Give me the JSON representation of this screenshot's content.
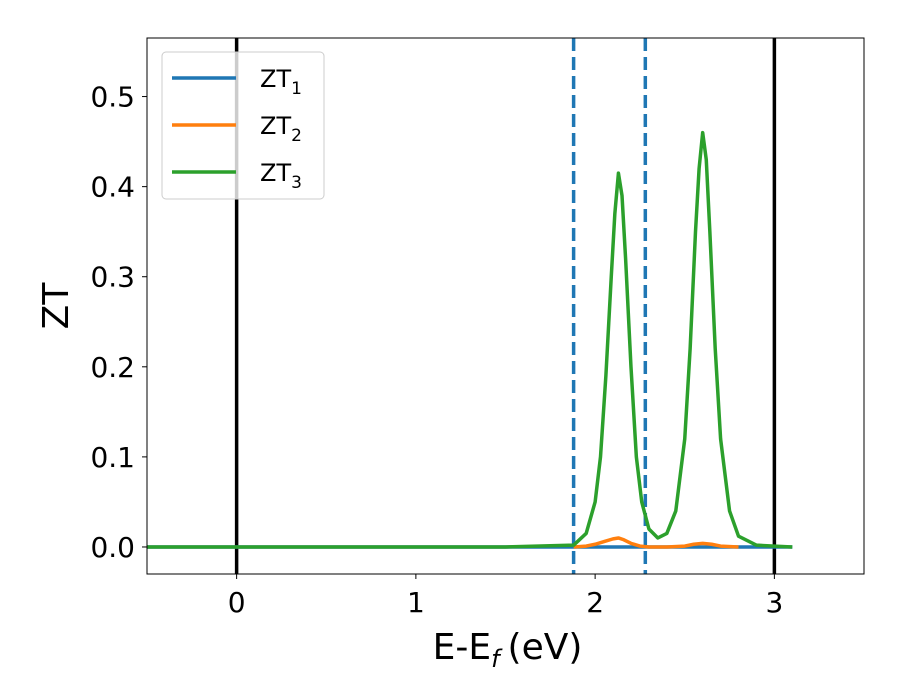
{
  "chart_data": {
    "type": "line",
    "xlabel": "E-E",
    "xlabel_sub": "f",
    "xlabel_unit": "(eV)",
    "ylabel": "ZT",
    "xlim": [
      -0.5,
      3.5
    ],
    "ylim": [
      -0.03,
      0.565
    ],
    "x_ticks": [
      0,
      1,
      2,
      3
    ],
    "x_tick_labels": [
      "0",
      "1",
      "2",
      "3"
    ],
    "y_ticks": [
      0.0,
      0.1,
      0.2,
      0.3,
      0.4,
      0.5
    ],
    "y_tick_labels": [
      "0.0",
      "0.1",
      "0.2",
      "0.3",
      "0.4",
      "0.5"
    ],
    "grid": false,
    "legend_position": "top-left",
    "vertical_lines": [
      {
        "x": 0.0,
        "style": "solid",
        "color": "#000000"
      },
      {
        "x": 3.0,
        "style": "solid",
        "color": "#000000"
      },
      {
        "x": 1.88,
        "style": "dashed",
        "color": "#1f77b4"
      },
      {
        "x": 2.28,
        "style": "dashed",
        "color": "#1f77b4"
      }
    ],
    "series": [
      {
        "name": "ZT",
        "name_sub": "1",
        "color": "#1f77b4",
        "x": [
          -0.5,
          0.5,
          1.5,
          1.88,
          2.0,
          2.2,
          2.28,
          2.5,
          2.8,
          3.1
        ],
        "y": [
          0,
          0,
          0,
          0,
          0,
          0,
          0,
          0,
          0,
          0
        ]
      },
      {
        "name": "ZT",
        "name_sub": "2",
        "color": "#ff7f0e",
        "x": [
          1.88,
          1.95,
          2.0,
          2.05,
          2.1,
          2.13,
          2.16,
          2.2,
          2.25,
          2.3,
          2.4,
          2.5,
          2.55,
          2.6,
          2.65,
          2.7,
          2.8
        ],
        "y": [
          0,
          0.001,
          0.003,
          0.006,
          0.009,
          0.01,
          0.008,
          0.004,
          0.001,
          0,
          0,
          0.001,
          0.003,
          0.004,
          0.003,
          0.001,
          0
        ]
      },
      {
        "name": "ZT",
        "name_sub": "3",
        "color": "#2ca02c",
        "x": [
          -0.5,
          1.5,
          1.88,
          1.95,
          2.0,
          2.03,
          2.06,
          2.09,
          2.11,
          2.13,
          2.15,
          2.17,
          2.2,
          2.23,
          2.26,
          2.3,
          2.35,
          2.4,
          2.45,
          2.5,
          2.53,
          2.56,
          2.58,
          2.6,
          2.62,
          2.64,
          2.67,
          2.7,
          2.75,
          2.8,
          2.9,
          3.1
        ],
        "y": [
          0,
          0,
          0.002,
          0.015,
          0.05,
          0.1,
          0.19,
          0.3,
          0.37,
          0.415,
          0.39,
          0.32,
          0.2,
          0.1,
          0.05,
          0.02,
          0.01,
          0.015,
          0.04,
          0.12,
          0.22,
          0.35,
          0.42,
          0.46,
          0.43,
          0.35,
          0.22,
          0.12,
          0.04,
          0.012,
          0.002,
          0
        ]
      }
    ]
  }
}
